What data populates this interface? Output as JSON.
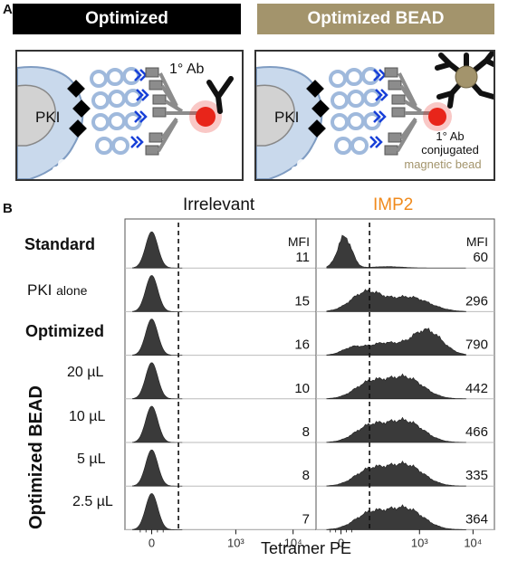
{
  "panel_a": {
    "letter": "A",
    "left": {
      "header": "Optimized",
      "pki_label": "PKI",
      "antibody_label": "1° Ab"
    },
    "right": {
      "header": "Optimized BEAD",
      "pki_label": "PKI",
      "caption_line1": "1° Ab",
      "caption_line2": "conjugated",
      "caption_line3": "magnetic bead"
    },
    "colors": {
      "bead": "#a3946c",
      "fluor": "#e8251a",
      "cell": "#c9d9ec",
      "linker": "#9fb9dc",
      "ab_mark": "#1840d8"
    }
  },
  "panel_b": {
    "letter": "B",
    "col_irrelevant": "Irrelevant",
    "col_imp2": "IMP2",
    "imp2_color": "#f08a1c",
    "mfi_label": "MFI",
    "group_label": "Optimized BEAD",
    "xlabel": "Tetramer PE",
    "xticks": [
      "0",
      "10³",
      "10⁴"
    ],
    "rows": [
      {
        "label": "Standard",
        "bold": true,
        "mfi_irrelevant": "11",
        "mfi_imp2": "60"
      },
      {
        "label_main": "PKI",
        "label_sub": "alone",
        "bold": false,
        "mfi_irrelevant": "15",
        "mfi_imp2": "296"
      },
      {
        "label": "Optimized",
        "bold": true,
        "mfi_irrelevant": "16",
        "mfi_imp2": "790"
      },
      {
        "label": "20 µL",
        "bold": false,
        "mfi_irrelevant": "10",
        "mfi_imp2": "442"
      },
      {
        "label": "10 µL",
        "bold": false,
        "mfi_irrelevant": "8",
        "mfi_imp2": "466"
      },
      {
        "label": "5 µL",
        "bold": false,
        "mfi_irrelevant": "8",
        "mfi_imp2": "335"
      },
      {
        "label": "2.5 µL",
        "bold": false,
        "mfi_irrelevant": "7",
        "mfi_imp2": "364"
      }
    ]
  }
}
